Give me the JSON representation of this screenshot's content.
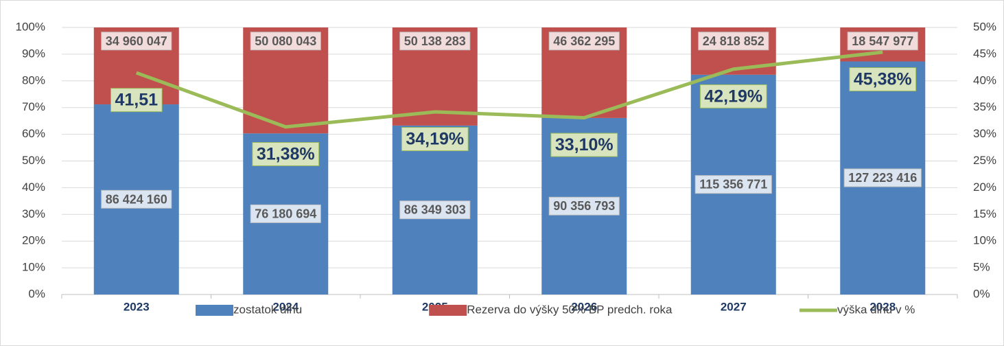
{
  "chart_data": {
    "type": "bar",
    "categories": [
      "2023",
      "2024",
      "2025",
      "2026",
      "2027",
      "2028"
    ],
    "series": [
      {
        "name": "zostatok dlhu",
        "color": "#4f81bd",
        "values": [
          86424160,
          76180694,
          86349303,
          90356793,
          115356771,
          127223416
        ],
        "value_labels": [
          "86 424 160",
          "76 180 694",
          "86 349 303",
          "90 356 793",
          "115 356 771",
          "127 223 416"
        ]
      },
      {
        "name": "Rezerva do výšky 50% BP predch. roka",
        "color": "#c0504d",
        "values": [
          34960047,
          50080043,
          50138283,
          46362295,
          24818852,
          18547977
        ],
        "value_labels": [
          "34 960 047",
          "50 080 043",
          "50 138 283",
          "46 362 295",
          "24 818 852",
          "18 547 977"
        ]
      },
      {
        "name": "výška dlhu v %",
        "color": "#9bbb59",
        "type": "line",
        "axis": "y2",
        "values": [
          41.51,
          31.38,
          34.19,
          33.1,
          42.19,
          45.38
        ],
        "value_labels": [
          "41,51",
          "31,38%",
          "34,19%",
          "33,10%",
          "42,19%",
          "45,38%"
        ]
      }
    ],
    "stacking": "percent",
    "ylim": [
      0,
      100
    ],
    "yticks": [
      {
        "value": 0,
        "label": "0%"
      },
      {
        "value": 10,
        "label": "10%"
      },
      {
        "value": 20,
        "label": "20%"
      },
      {
        "value": 30,
        "label": "30%"
      },
      {
        "value": 40,
        "label": "40%"
      },
      {
        "value": 50,
        "label": "50%"
      },
      {
        "value": 60,
        "label": "60%"
      },
      {
        "value": 70,
        "label": "70%"
      },
      {
        "value": 80,
        "label": "80%"
      },
      {
        "value": 90,
        "label": "90%"
      },
      {
        "value": 100,
        "label": "100%"
      }
    ],
    "y2lim": [
      0,
      50
    ],
    "y2ticks": [
      {
        "value": 0,
        "label": "0%"
      },
      {
        "value": 5,
        "label": "5%"
      },
      {
        "value": 10,
        "label": "10%"
      },
      {
        "value": 15,
        "label": "15%"
      },
      {
        "value": 20,
        "label": "20%"
      },
      {
        "value": 25,
        "label": "25%"
      },
      {
        "value": 30,
        "label": "30%"
      },
      {
        "value": 35,
        "label": "35%"
      },
      {
        "value": 40,
        "label": "40%"
      },
      {
        "value": 45,
        "label": "45%"
      },
      {
        "value": 50,
        "label": "50%"
      }
    ],
    "grid": true,
    "legend": "bottom"
  }
}
